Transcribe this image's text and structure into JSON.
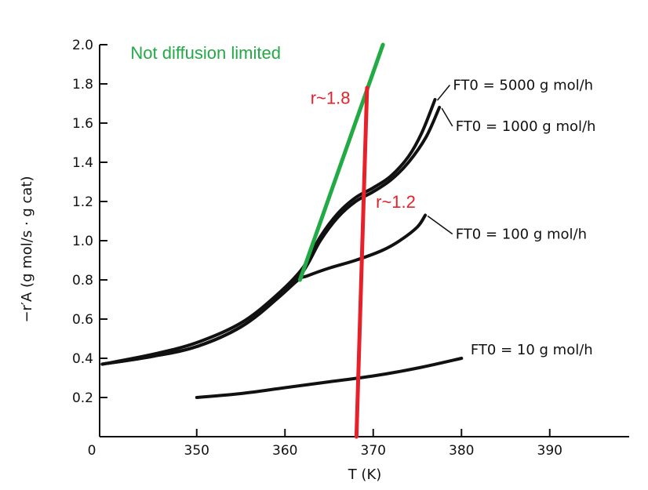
{
  "chart_data": {
    "type": "line",
    "xlabel": "T (K)",
    "ylabel": "−r′A (g mol/s · g cat)",
    "xlim": [
      339,
      399
    ],
    "ylim": [
      0,
      2.0
    ],
    "x_ticks": [
      350,
      360,
      370,
      380,
      390
    ],
    "y_ticks": [
      0.2,
      0.4,
      0.6,
      0.8,
      1.0,
      1.2,
      1.4,
      1.6,
      1.8,
      2.0
    ],
    "x_tick_labels": [
      "350",
      "360",
      "370",
      "380",
      "390"
    ],
    "y_tick_labels": [
      "0.2",
      "0.4",
      "0.6",
      "0.8",
      "1.0",
      "1.2",
      "1.4",
      "1.6",
      "1.8",
      "2.0"
    ],
    "origin_label": "0",
    "grid": false,
    "legend": "none",
    "series": [
      {
        "name": "FT0 = 5000 g mol/h",
        "label": "FT0 = 5000 g mol/h",
        "label_at": [
          378.5,
          1.77
        ],
        "color": "#111111",
        "points": [
          [
            339.3,
            0.37
          ],
          [
            345,
            0.42
          ],
          [
            350,
            0.48
          ],
          [
            355,
            0.58
          ],
          [
            359,
            0.72
          ],
          [
            362,
            0.86
          ],
          [
            364,
            1.02
          ],
          [
            366,
            1.14
          ],
          [
            368,
            1.22
          ],
          [
            370,
            1.27
          ],
          [
            372,
            1.33
          ],
          [
            374,
            1.43
          ],
          [
            375.5,
            1.55
          ],
          [
            377,
            1.72
          ]
        ]
      },
      {
        "name": "FT0 = 1000 g mol/h",
        "label": "FT0 = 1000 g mol/h",
        "label_at": [
          378.8,
          1.56
        ],
        "color": "#111111",
        "points": [
          [
            339.3,
            0.37
          ],
          [
            345,
            0.41
          ],
          [
            350,
            0.46
          ],
          [
            355,
            0.56
          ],
          [
            359,
            0.7
          ],
          [
            362,
            0.84
          ],
          [
            364,
            1.0
          ],
          [
            366,
            1.12
          ],
          [
            368,
            1.2
          ],
          [
            370,
            1.25
          ],
          [
            372,
            1.31
          ],
          [
            374,
            1.4
          ],
          [
            376,
            1.53
          ],
          [
            377.5,
            1.68
          ]
        ]
      },
      {
        "name": "FT0 = 100 g mol/h",
        "label": "FT0 = 100 g mol/h",
        "label_at": [
          378.8,
          1.01
        ],
        "color": "#111111",
        "points": [
          [
            339.3,
            0.37
          ],
          [
            345,
            0.41
          ],
          [
            350,
            0.46
          ],
          [
            355,
            0.56
          ],
          [
            359,
            0.7
          ],
          [
            361.5,
            0.8
          ],
          [
            362.5,
            0.82
          ],
          [
            365,
            0.86
          ],
          [
            368,
            0.9
          ],
          [
            371,
            0.95
          ],
          [
            373,
            1.0
          ],
          [
            375,
            1.07
          ],
          [
            375.9,
            1.13
          ]
        ]
      },
      {
        "name": "FT0 = 10 g mol/h",
        "label": "FT0 = 10 g mol/h",
        "label_at": [
          380.5,
          0.42
        ],
        "color": "#111111",
        "points": [
          [
            350,
            0.2
          ],
          [
            355,
            0.22
          ],
          [
            360,
            0.25
          ],
          [
            365,
            0.28
          ],
          [
            370,
            0.31
          ],
          [
            375,
            0.35
          ],
          [
            380,
            0.4
          ]
        ]
      }
    ],
    "annotations": [
      {
        "id": "not-diffusion-limited",
        "text": "Not diffusion limited",
        "color": "#22aa44",
        "line": [
          [
            361.7,
            0.8
          ],
          [
            371.1,
            2.0
          ]
        ],
        "text_at": [
          342.5,
          1.96
        ],
        "text_anchor": "start"
      },
      {
        "id": "r-1-8",
        "text": "r~1.8",
        "color": "#e8202a",
        "line": [
          [
            368.1,
            0
          ],
          [
            369.3,
            1.78
          ]
        ],
        "text_at": [
          367.4,
          1.73
        ],
        "text_anchor": "end"
      },
      {
        "id": "r-1-2",
        "text": "r~1.2",
        "color": "#e8202a",
        "text_at": [
          370.3,
          1.2
        ],
        "text_anchor": "start"
      }
    ]
  }
}
